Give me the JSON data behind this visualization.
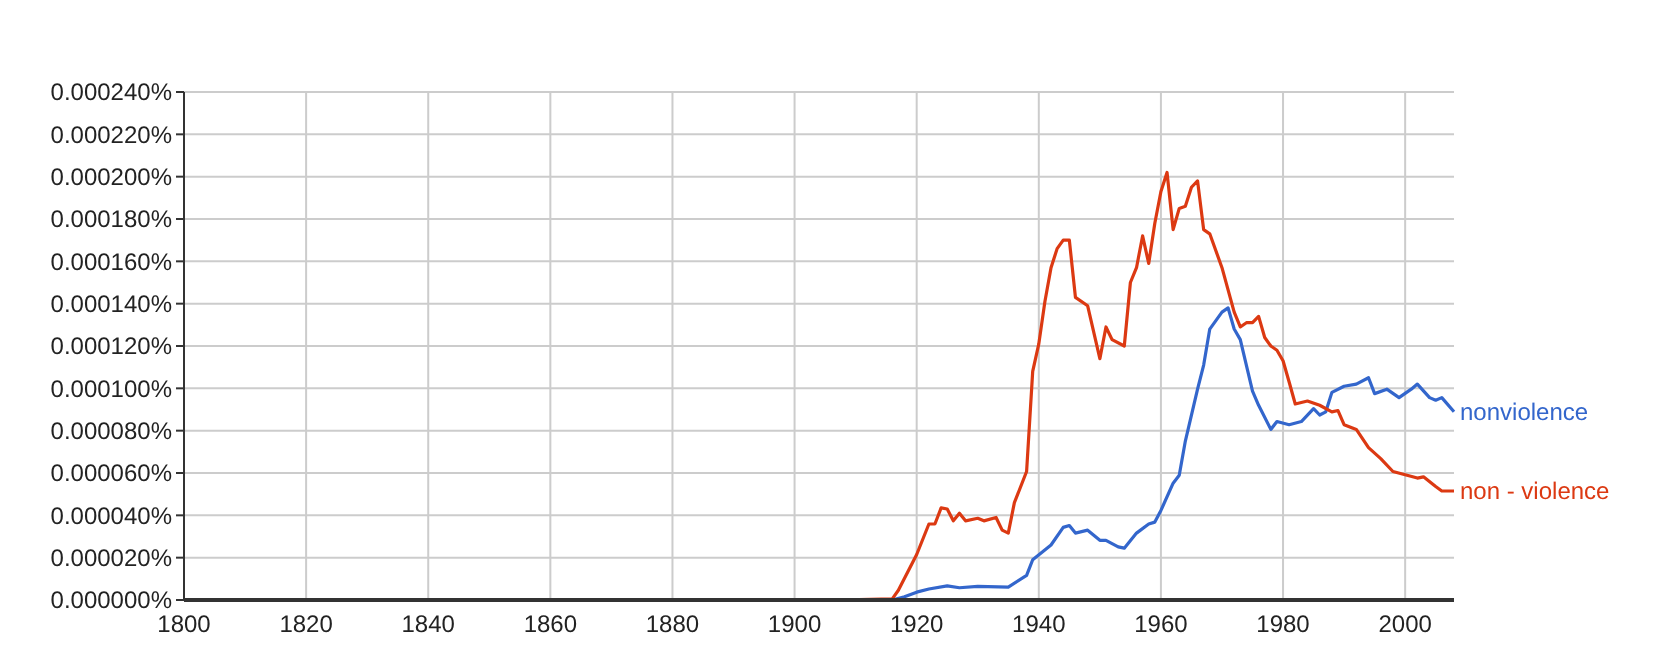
{
  "chart_data": {
    "type": "line",
    "xlim": [
      1800,
      2008
    ],
    "xticks": [
      1800,
      1820,
      1840,
      1860,
      1880,
      1900,
      1920,
      1940,
      1960,
      1980,
      2000
    ],
    "ylim": [
      0,
      0.00024
    ],
    "yticks": [
      {
        "value": 0,
        "label": "0.000000%"
      },
      {
        "value": 2e-05,
        "label": "0.000020%"
      },
      {
        "value": 4e-05,
        "label": "0.000040%"
      },
      {
        "value": 6e-05,
        "label": "0.000060%"
      },
      {
        "value": 8e-05,
        "label": "0.000080%"
      },
      {
        "value": 0.0001,
        "label": "0.000100%"
      },
      {
        "value": 0.00012,
        "label": "0.000120%"
      },
      {
        "value": 0.00014,
        "label": "0.000140%"
      },
      {
        "value": 0.00016,
        "label": "0.000160%"
      },
      {
        "value": 0.00018,
        "label": "0.000180%"
      },
      {
        "value": 0.0002,
        "label": "0.000200%"
      },
      {
        "value": 0.00022,
        "label": "0.000220%"
      },
      {
        "value": 0.00024,
        "label": "0.000240%"
      }
    ],
    "grid": true,
    "series": [
      {
        "name": "nonviolence",
        "color": "#3366cc",
        "x": [
          1800,
          1916,
          1918,
          1920,
          1922,
          1925,
          1927,
          1930,
          1935,
          1938,
          1939,
          1942,
          1944,
          1945,
          1946,
          1948,
          1950,
          1951,
          1953,
          1954,
          1956,
          1958,
          1959,
          1960,
          1962,
          1963,
          1964,
          1966,
          1967,
          1968,
          1969,
          1970,
          1971,
          1972,
          1973,
          1975,
          1976,
          1978,
          1979,
          1981,
          1983,
          1985,
          1986,
          1987,
          1988,
          1990,
          1992,
          1994,
          1995,
          1997,
          1999,
          2001,
          2002,
          2004,
          2005,
          2006,
          2008
        ],
        "values": [
          0,
          0,
          1.5e-06,
          3.7e-06,
          5.2e-06,
          6.7e-06,
          5.8e-06,
          6.4e-06,
          6.1e-06,
          1.16e-05,
          1.9e-05,
          2.6e-05,
          3.43e-05,
          3.52e-05,
          3.16e-05,
          3.3e-05,
          2.82e-05,
          2.82e-05,
          2.51e-05,
          2.45e-05,
          3.16e-05,
          3.59e-05,
          3.68e-05,
          4.23e-05,
          5.52e-05,
          5.89e-05,
          7.51e-05,
          9.96e-05,
          0.000111,
          0.000128,
          0.000132,
          0.000136,
          0.000138,
          0.000128,
          0.000123,
          9.87e-05,
          9.2e-05,
          8.06e-05,
          8.43e-05,
          8.28e-05,
          8.43e-05,
          9.04e-05,
          8.74e-05,
          8.89e-05,
          9.81e-05,
          0.000101,
          0.000102,
          0.000105,
          9.75e-05,
          9.96e-05,
          9.56e-05,
          9.96e-05,
          0.000102,
          9.56e-05,
          9.44e-05,
          9.56e-05,
          8.89e-05
        ]
      },
      {
        "name": "non - violence",
        "color": "#dc3912",
        "x": [
          1800,
          1907,
          1916,
          1917,
          1920,
          1922,
          1923,
          1924,
          1925,
          1926,
          1927,
          1928,
          1930,
          1931,
          1933,
          1934,
          1935,
          1936,
          1938,
          1939,
          1940,
          1941,
          1942,
          1943,
          1944,
          1945,
          1946,
          1948,
          1950,
          1951,
          1952,
          1954,
          1955,
          1956,
          1957,
          1958,
          1959,
          1960,
          1961,
          1962,
          1963,
          1964,
          1965,
          1966,
          1967,
          1968,
          1970,
          1972,
          1973,
          1974,
          1975,
          1976,
          1977,
          1978,
          1979,
          1980,
          1981,
          1982,
          1984,
          1986,
          1988,
          1989,
          1990,
          1992,
          1994,
          1996,
          1998,
          2000,
          2002,
          2003,
          2005,
          2006,
          2008
        ],
        "values": [
          0,
          0,
          5e-07,
          4.6e-06,
          2.15e-05,
          3.59e-05,
          3.6e-05,
          4.35e-05,
          4.3e-05,
          3.74e-05,
          4.1e-05,
          3.74e-05,
          3.86e-05,
          3.74e-05,
          3.9e-05,
          3.3e-05,
          3.16e-05,
          4.6e-05,
          6.07e-05,
          0.000108,
          0.000121,
          0.000141,
          0.000157,
          0.000166,
          0.00017,
          0.00017,
          0.000143,
          0.000139,
          0.000114,
          0.000129,
          0.000123,
          0.00012,
          0.00015,
          0.000157,
          0.000172,
          0.000159,
          0.000178,
          0.000193,
          0.000202,
          0.000175,
          0.000185,
          0.000186,
          0.000195,
          0.000198,
          0.000175,
          0.000173,
          0.000157,
          0.000136,
          0.000129,
          0.000131,
          0.000131,
          0.000134,
          0.000124,
          0.00012,
          0.000118,
          0.000113,
          0.000103,
          9.26e-05,
          9.4e-05,
          9.2e-05,
          8.89e-05,
          8.95e-05,
          8.28e-05,
          8.06e-05,
          7.2e-05,
          6.68e-05,
          6.07e-05,
          5.92e-05,
          5.76e-05,
          5.82e-05,
          5.36e-05,
          5.15e-05,
          5.15e-05
        ]
      }
    ]
  }
}
